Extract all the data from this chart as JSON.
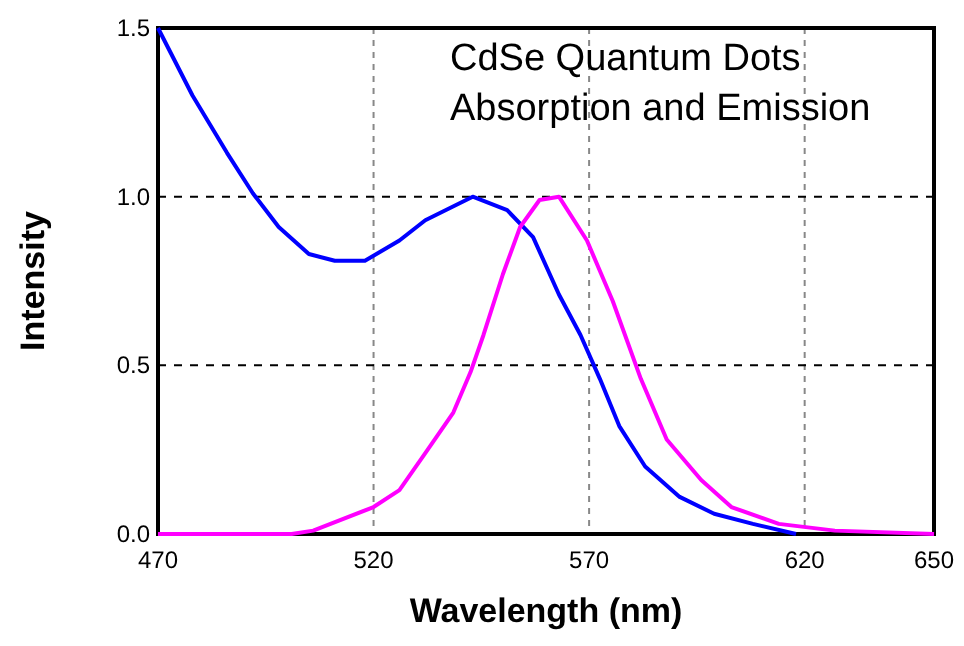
{
  "chart_data": {
    "type": "line",
    "title": "CdSe Quantum Dots",
    "subtitle": "Absorption and Emission",
    "xlabel": "Wavelength (nm)",
    "ylabel": "Intensity",
    "xlim": [
      470,
      650
    ],
    "xticks": [
      470,
      520,
      570,
      620,
      650
    ],
    "ylim": [
      0,
      1.5
    ],
    "yticks": [
      {
        "value": 0,
        "label": "0.0"
      },
      {
        "value": 0.5,
        "label": "0.5"
      },
      {
        "value": 1,
        "label": "1.0"
      },
      {
        "value": 1.5,
        "label": "1.5"
      }
    ],
    "grid": true,
    "marker": "none",
    "line_style": "solid",
    "series": [
      {
        "color": "#0000ff",
        "x": [
          470,
          478,
          486,
          492,
          498,
          505,
          511,
          518,
          526,
          532,
          543,
          551,
          557,
          563,
          568,
          572.5,
          577,
          583,
          591,
          599,
          608,
          618
        ],
        "values": [
          1.5,
          1.3,
          1.13,
          1.01,
          0.91,
          0.83,
          0.81,
          0.81,
          0.87,
          0.93,
          1.0,
          0.96,
          0.88,
          0.71,
          0.59,
          0.46,
          0.32,
          0.2,
          0.11,
          0.06,
          0.03,
          0.0
        ]
      },
      {
        "color": "#ff00ff",
        "x": [
          470,
          501,
          506,
          520,
          526,
          532,
          538.5,
          542.5,
          545.5,
          550,
          554,
          558.5,
          563,
          569.5,
          575.5,
          582,
          588,
          596,
          603,
          614,
          627,
          650
        ],
        "values": [
          0,
          0,
          0.01,
          0.08,
          0.13,
          0.24,
          0.36,
          0.48,
          0.59,
          0.77,
          0.91,
          0.99,
          1.0,
          0.87,
          0.69,
          0.46,
          0.28,
          0.16,
          0.08,
          0.03,
          0.01,
          0
        ]
      }
    ]
  }
}
